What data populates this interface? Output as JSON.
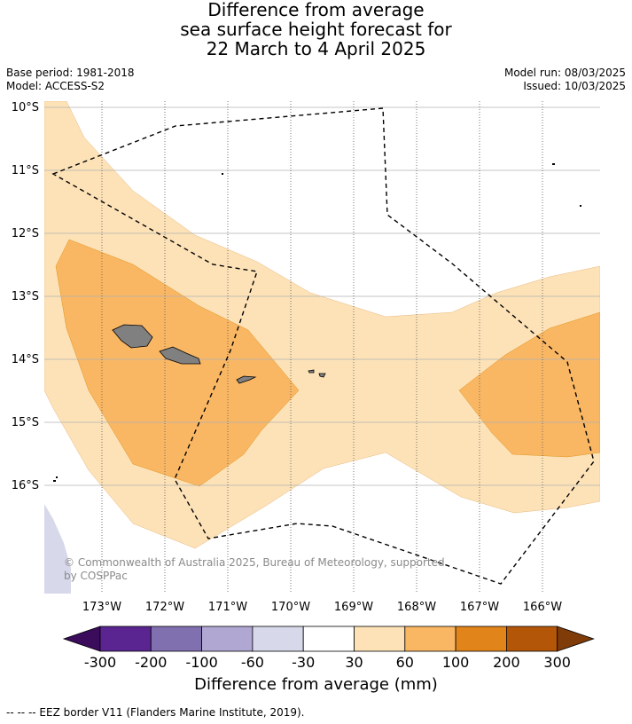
{
  "header": {
    "title_lines": [
      "Difference from average",
      "sea surface height forecast for",
      "22 March to 4 April 2025"
    ],
    "base_period": "Base period: 1981-2018",
    "model": "Model: ACCESS-S2",
    "model_run": "Model run: 08/03/2025",
    "issued": "Issued: 10/03/2025"
  },
  "map": {
    "lat_labels": [
      "10°S",
      "11°S",
      "12°S",
      "13°S",
      "14°S",
      "15°S",
      "16°S"
    ],
    "lon_labels": [
      "173°W",
      "172°W",
      "171°W",
      "170°W",
      "169°W",
      "168°W",
      "167°W",
      "166°W"
    ],
    "copyright": "© Commonwealth of Australia 2025, Bureau of Meteorology, supported",
    "copyright_line2": "by COSPPac"
  },
  "colorbar": {
    "ticks": [
      "-300",
      "-200",
      "-100",
      "-60",
      "-30",
      "30",
      "60",
      "100",
      "200",
      "300"
    ],
    "colors": [
      "#5a2590",
      "#8170b0",
      "#b0a8d3",
      "#d7d8ea",
      "#ffffff",
      "#fde2b8",
      "#f9b764",
      "#e1841a",
      "#b35608"
    ],
    "under_color": "#3b0b5c",
    "over_color": "#7f3b08",
    "title": "Difference from average (mm)"
  },
  "footer": {
    "eez_note": "--  --  -- EEZ border V11 (Flanders Marine Institute, 2019)."
  }
}
